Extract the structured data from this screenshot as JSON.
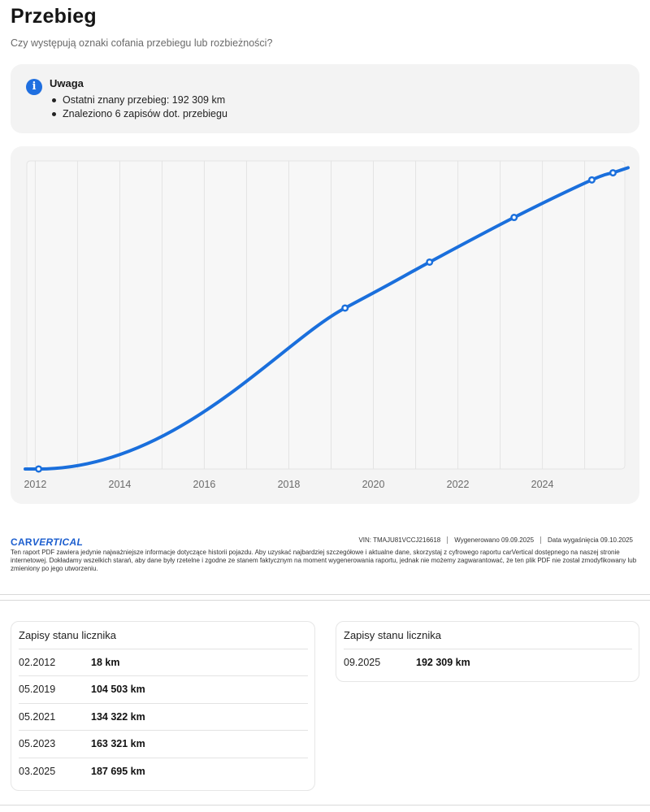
{
  "header": {
    "title": "Przebieg",
    "subtitle": "Czy występują oznaki cofania przebiegu lub rozbieżności?"
  },
  "notice": {
    "icon": "info-icon",
    "title": "Uwaga",
    "items": [
      "Ostatni znany przebieg: 192 309 km",
      "Znaleziono 6 zapisów dot. przebiegu"
    ]
  },
  "chart_data": {
    "type": "line",
    "title": "",
    "xlabel": "",
    "ylabel": "",
    "x_tick_labels": [
      "2012",
      "2014",
      "2016",
      "2018",
      "2020",
      "2022",
      "2024"
    ],
    "x_ticks": [
      2012,
      2014,
      2016,
      2018,
      2020,
      2022,
      2024
    ],
    "xlim": [
      2011.8,
      2025.95
    ],
    "ylim": [
      0,
      200000
    ],
    "grid": true,
    "color": "#1a6fdc",
    "points": [
      {
        "x": 2012.08,
        "y": 18
      },
      {
        "x": 2019.33,
        "y": 104503
      },
      {
        "x": 2021.33,
        "y": 134322
      },
      {
        "x": 2023.33,
        "y": 163321
      },
      {
        "x": 2025.17,
        "y": 187695
      },
      {
        "x": 2025.67,
        "y": 192309
      }
    ]
  },
  "footer": {
    "brand_part1": "CAR",
    "brand_part2": "VERTICAL",
    "vin": "VIN: TMAJU81VCCJ216618",
    "generated": "Wygenerowano 09.09.2025",
    "expiry": "Data wygaśnięcia 09.10.2025",
    "disclaimer": "Ten raport PDF zawiera jedynie najważniejsze informacje dotyczące historii pojazdu. Aby uzyskać najbardziej szczegółowe i aktualne dane, skorzystaj z cyfrowego raportu carVertical dostępnego na naszej stronie internetowej. Dokładamy wszelkich starań, aby dane były rzetelne i zgodne ze stanem faktycznym na moment wygenerowania raportu, jednak nie możemy zagwarantować, że ten plik PDF nie został zmodyfikowany lub zmieniony po jego utworzeniu."
  },
  "records_left": {
    "title": "Zapisy stanu licznika",
    "rows": [
      {
        "date": "02.2012",
        "km": "18 km"
      },
      {
        "date": "05.2019",
        "km": "104 503 km"
      },
      {
        "date": "05.2021",
        "km": "134 322 km"
      },
      {
        "date": "05.2023",
        "km": "163 321 km"
      },
      {
        "date": "03.2025",
        "km": "187 695 km"
      }
    ]
  },
  "records_right": {
    "title": "Zapisy stanu licznika",
    "rows": [
      {
        "date": "09.2025",
        "km": "192 309 km"
      }
    ]
  }
}
